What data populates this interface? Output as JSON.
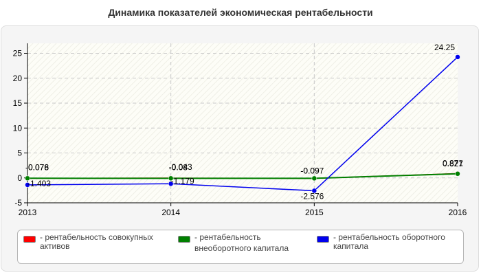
{
  "chart_data": {
    "type": "line",
    "title": "Динамика показателей экономическая рентабельности",
    "categories": [
      "2013",
      "2014",
      "2015",
      "2016"
    ],
    "ylim": [
      -5,
      27
    ],
    "yticks": [
      -5,
      0,
      5,
      10,
      15,
      20,
      25
    ],
    "grid": true,
    "legend_position": "bottom",
    "series": [
      {
        "name": "рентабельность совокупных активов",
        "color": "#ff0000",
        "values": [
          -0.078,
          -0.043,
          -0.097,
          0.871
        ],
        "labels": [
          "-0.078",
          "-0.043",
          "-0.097",
          "0.871"
        ]
      },
      {
        "name": "рентабельность внеоборотного капитала",
        "color": "#008000",
        "values": [
          -0.076,
          -0.08,
          -0.09,
          0.827
        ],
        "labels": [
          "-0.076",
          "-0.08",
          "-0.09",
          "0.827"
        ]
      },
      {
        "name": "рентабельность оборотного капитала",
        "color": "#0000ee",
        "values": [
          -1.403,
          -1.179,
          -2.576,
          24.25
        ],
        "labels": [
          "-1.403",
          "-1.179",
          "-2.576",
          "24.25"
        ]
      }
    ]
  },
  "legend": [
    {
      "line1": "- рентабельность совокупных",
      "line2": "активов",
      "color": "#ff0000"
    },
    {
      "line1": "- рентабельность",
      "line2": "внеоборотного капитала",
      "color": "#008000"
    },
    {
      "line1": "- рентабельность оборотного",
      "line2": "капитала",
      "color": "#0000ee"
    }
  ]
}
